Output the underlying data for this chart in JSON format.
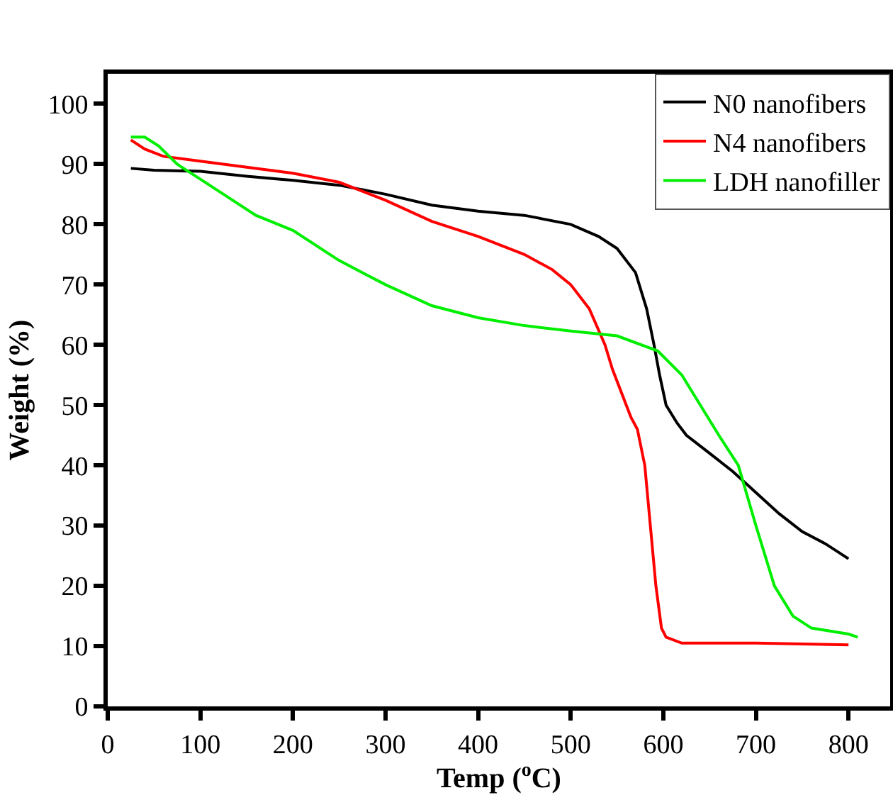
{
  "chart_data": {
    "type": "line",
    "xlabel": "Temp ($^{o}$C)",
    "ylabel": "Weight (%)",
    "xlim": [
      0,
      845
    ],
    "ylim": [
      0,
      105
    ],
    "xticks": [
      0,
      100,
      200,
      300,
      400,
      500,
      600,
      700,
      800
    ],
    "yticks": [
      0,
      10,
      20,
      30,
      40,
      50,
      60,
      70,
      80,
      90,
      100
    ],
    "grid": false,
    "legend": "top right",
    "marker": "none",
    "line_style": "solid",
    "series": [
      {
        "name": "N0 nanofibers",
        "color": "#000000",
        "x": [
          25,
          50,
          100,
          150,
          200,
          250,
          300,
          350,
          400,
          450,
          500,
          530,
          550,
          570,
          582,
          590,
          596,
          603,
          615,
          625,
          650,
          675,
          700,
          725,
          750,
          775,
          800
        ],
        "values": [
          89.3,
          89,
          88.8,
          88,
          87.3,
          86.5,
          85,
          83.2,
          82.2,
          81.5,
          80,
          78,
          76,
          72,
          66,
          60,
          55,
          50,
          47,
          45,
          42,
          39,
          35.5,
          32,
          29,
          27,
          24.5
        ]
      },
      {
        "name": "N4 nanofibers",
        "color": "#ff0000",
        "x": [
          25,
          40,
          60,
          100,
          150,
          200,
          250,
          300,
          350,
          400,
          450,
          480,
          500,
          520,
          537,
          545,
          560,
          565,
          572,
          580,
          592,
          598,
          603,
          620,
          700,
          800
        ],
        "values": [
          94,
          92.5,
          91.3,
          90.5,
          89.5,
          88.5,
          87,
          84,
          80.5,
          78,
          75,
          72.5,
          70,
          66,
          60,
          56,
          50,
          48,
          46,
          40,
          20,
          13,
          11.5,
          10.5,
          10.5,
          10.2
        ]
      },
      {
        "name": "LDH nanofiller",
        "color": "#00ee00",
        "x": [
          25,
          40,
          55,
          75,
          100,
          130,
          160,
          200,
          250,
          300,
          350,
          400,
          450,
          500,
          550,
          594,
          620,
          640,
          660,
          681,
          700,
          720,
          740,
          760,
          800,
          810
        ],
        "values": [
          94.5,
          94.5,
          93,
          90,
          87.5,
          84.5,
          81.5,
          79,
          74,
          70,
          66.5,
          64.5,
          63.2,
          62.3,
          61.5,
          59,
          55,
          50,
          45,
          40,
          30,
          20,
          15,
          13,
          12,
          11.5
        ]
      }
    ]
  }
}
